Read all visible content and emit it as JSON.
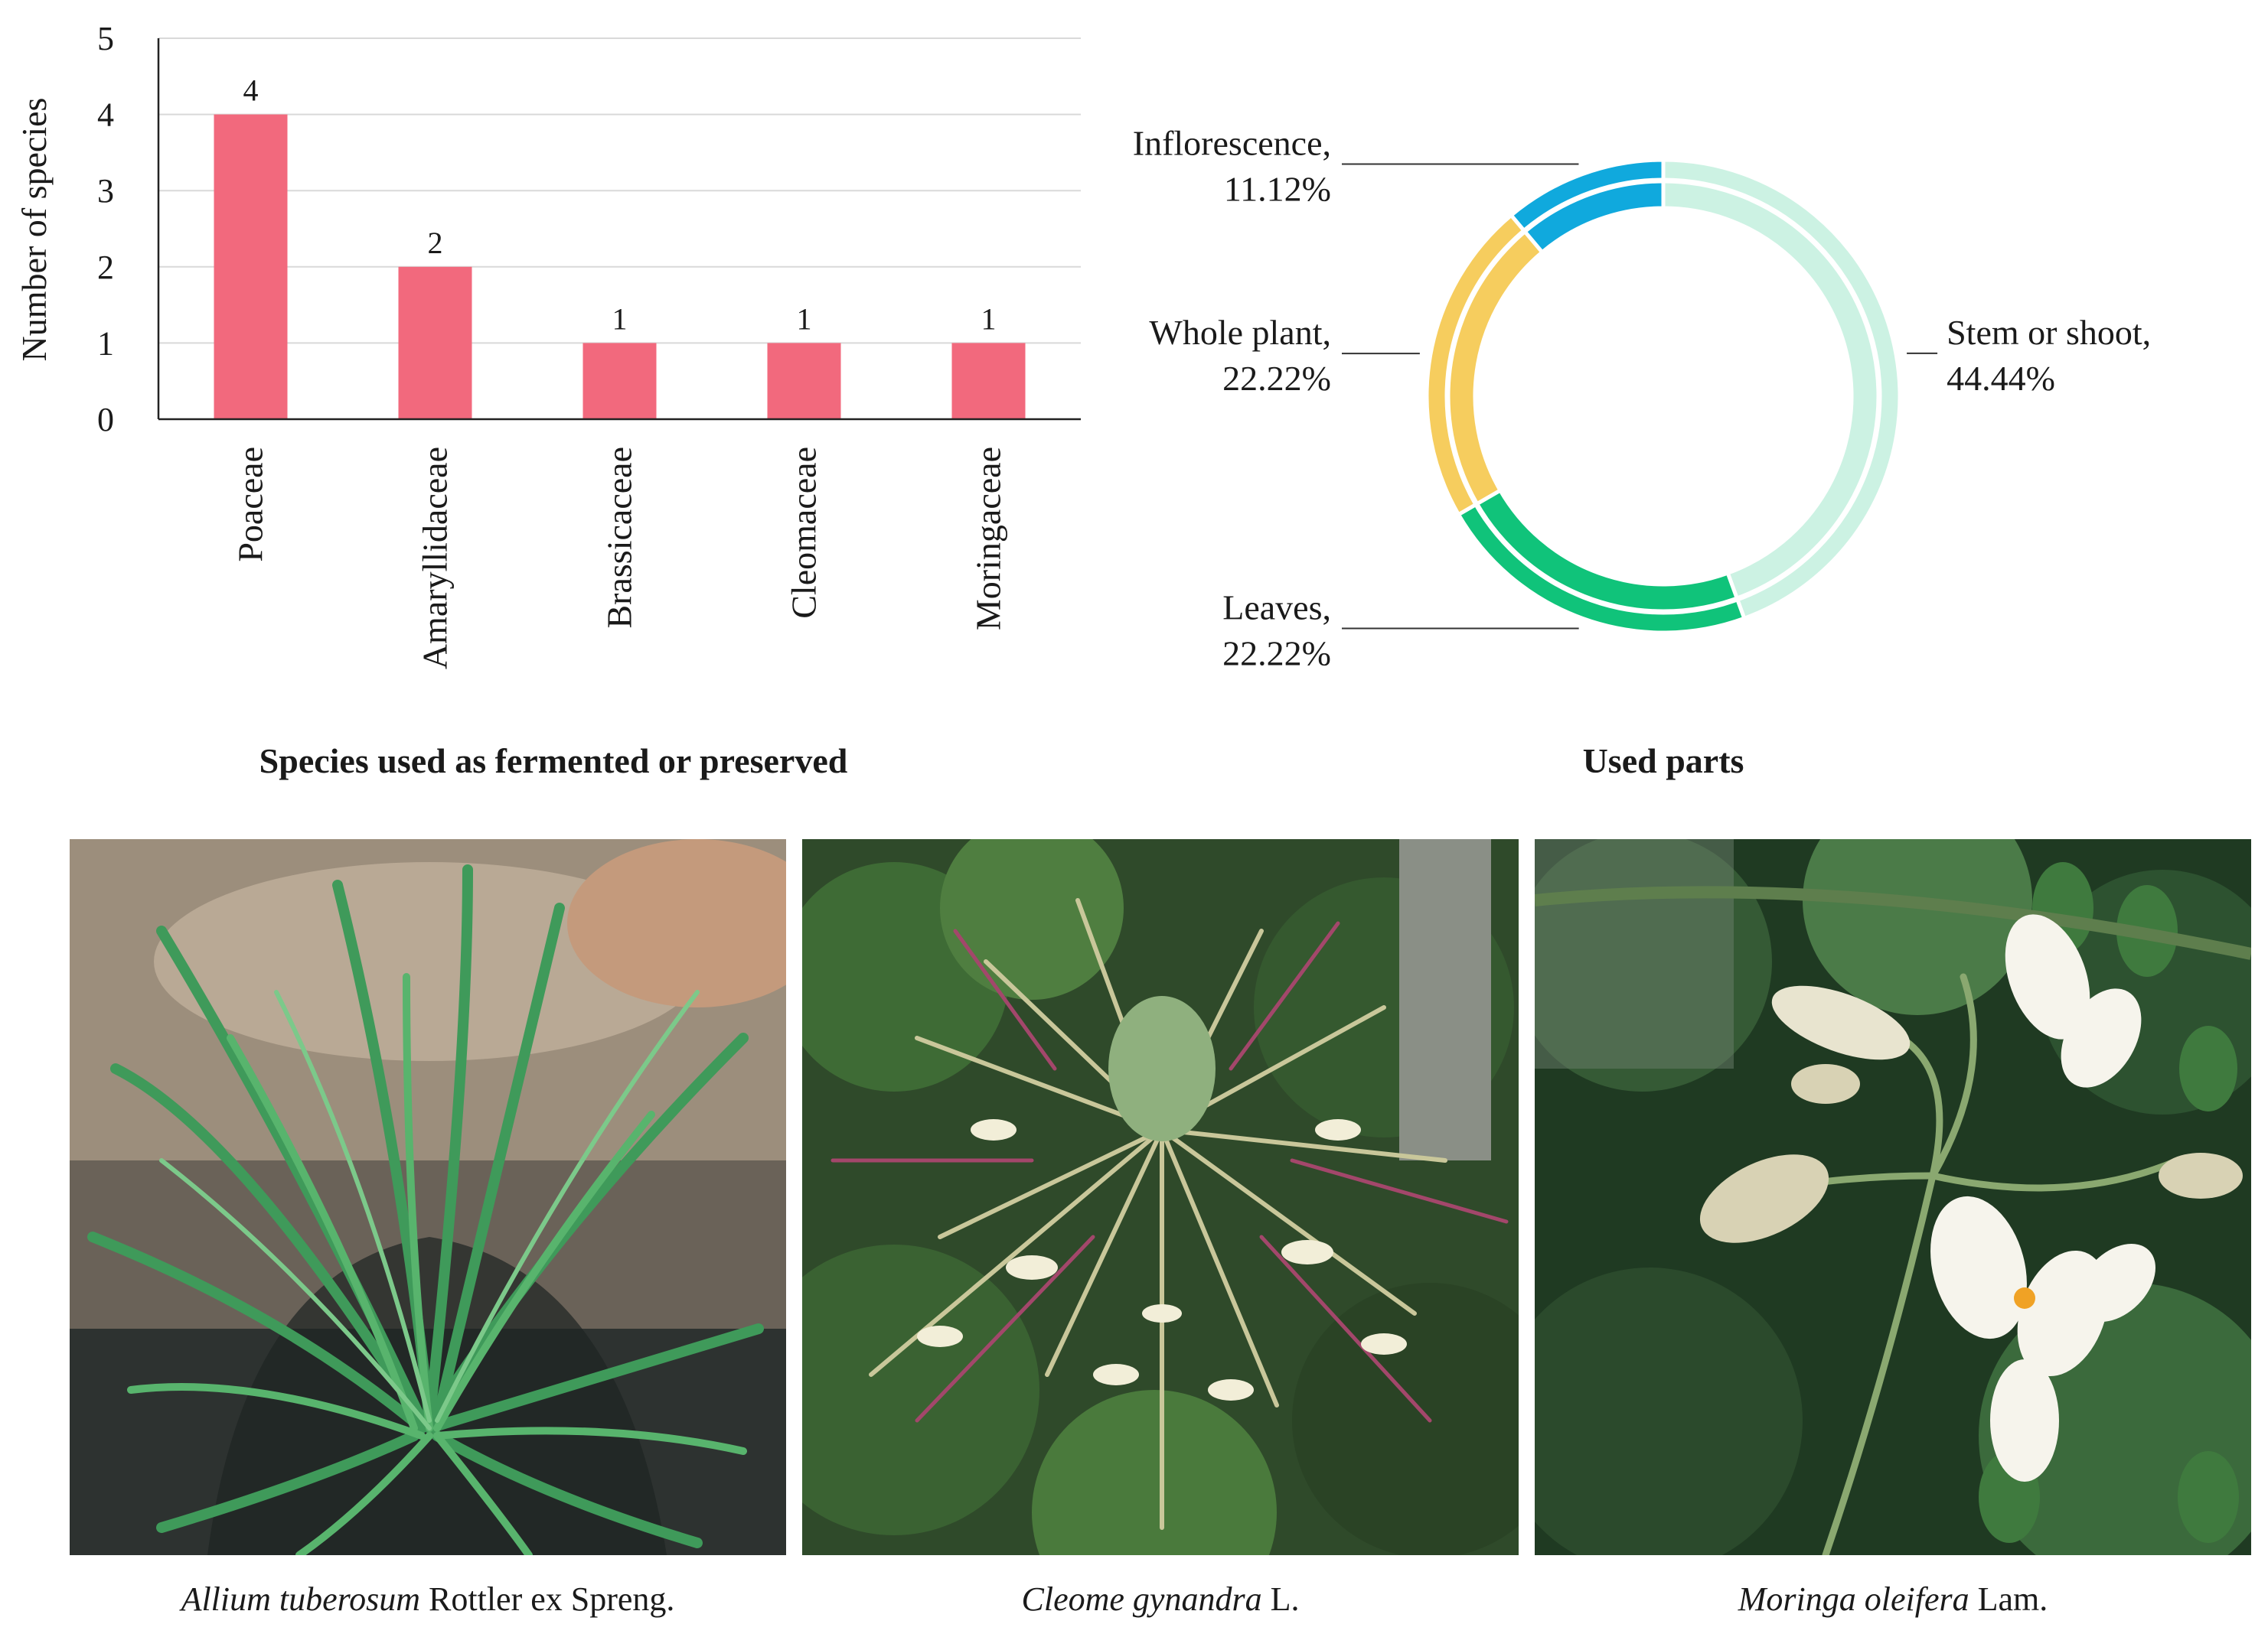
{
  "chart_data": [
    {
      "type": "bar",
      "title": "Species used as fermented or preserved",
      "ylabel": "Number of species",
      "xlabel": "",
      "categories": [
        "Poaceae",
        "Amaryllidaceae",
        "Brassicaceae",
        "Cleomaceae",
        "Moringaceae"
      ],
      "values": [
        4,
        2,
        1,
        1,
        1
      ],
      "data_labels": [
        "4",
        "2",
        "1",
        "1",
        "1"
      ],
      "ylim": [
        0,
        5
      ],
      "yticks": [
        "0",
        "1",
        "2",
        "3",
        "4",
        "5"
      ],
      "grid": true,
      "color": "#f2697d"
    },
    {
      "type": "pie",
      "subtype": "donut",
      "title": "Used parts",
      "slices": [
        {
          "name": "Stem or shoot",
          "value": 44.44,
          "label_name": "Stem or shoot,",
          "label_value": "44.44%",
          "color": "#ccf2e3"
        },
        {
          "name": "Leaves",
          "value": 22.22,
          "label_name": "Leaves,",
          "label_value": "22.22%",
          "color": "#10c37a"
        },
        {
          "name": "Whole plant",
          "value": 22.22,
          "label_name": "Whole plant,",
          "label_value": "22.22%",
          "color": "#f6cd5e"
        },
        {
          "name": "Inflorescence",
          "value": 11.12,
          "label_name": "Inflorescence,",
          "label_value": "11.12%",
          "color": "#10a9dd"
        }
      ]
    }
  ],
  "photos": [
    {
      "caption_italic": "Allium tuberosum",
      "caption_rest": " Rottler ex Spreng.",
      "icon": "allium-photo"
    },
    {
      "caption_italic": "Cleome gynandra",
      "caption_rest": " L.",
      "icon": "cleome-photo"
    },
    {
      "caption_italic": "Moringa oleifera",
      "caption_rest": " Lam.",
      "icon": "moringa-photo"
    }
  ]
}
